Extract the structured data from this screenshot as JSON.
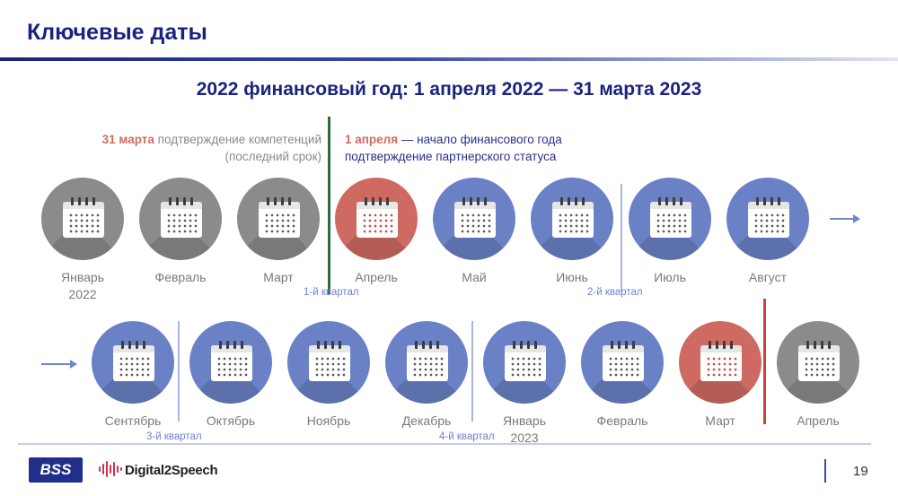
{
  "header": {
    "title": "Ключевые даты"
  },
  "subtitle": "2022 финансовый год: 1 апреля 2022 — 31 марта 2023",
  "notes": {
    "left_highlight": "31 марта",
    "left_text": " подтверждение компетенций",
    "left_line2": "(последний срок)",
    "right_highlight": "1 апреля",
    "right_text": " — начало финансового года",
    "right_line2": "подтверждение партнерского статуса"
  },
  "row1": {
    "months": [
      {
        "line1": "Январь",
        "line2": "2022",
        "color": "gray"
      },
      {
        "line1": "Февраль",
        "line2": "",
        "color": "gray"
      },
      {
        "line1": "Март",
        "line2": "",
        "color": "gray"
      },
      {
        "line1": "Апрель",
        "line2": "",
        "color": "red"
      },
      {
        "line1": "Май",
        "line2": "",
        "color": "blue"
      },
      {
        "line1": "Июнь",
        "line2": "",
        "color": "blue"
      },
      {
        "line1": "Июль",
        "line2": "",
        "color": "blue"
      },
      {
        "line1": "Август",
        "line2": "",
        "color": "blue"
      }
    ],
    "quarters": [
      "1-й квартал",
      "2-й квартал"
    ]
  },
  "row2": {
    "months": [
      {
        "line1": "Сентябрь",
        "line2": "",
        "color": "blue"
      },
      {
        "line1": "Октябрь",
        "line2": "",
        "color": "blue"
      },
      {
        "line1": "Ноябрь",
        "line2": "",
        "color": "blue"
      },
      {
        "line1": "Декабрь",
        "line2": "",
        "color": "blue"
      },
      {
        "line1": "Январь",
        "line2": "2023",
        "color": "blue"
      },
      {
        "line1": "Февраль",
        "line2": "",
        "color": "blue"
      },
      {
        "line1": "Март",
        "line2": "",
        "color": "red"
      },
      {
        "line1": "Апрель",
        "line2": "",
        "color": "gray"
      }
    ],
    "quarters": [
      "3-й квартал",
      "4-й квартал"
    ]
  },
  "footer": {
    "logo_text": "BSS",
    "brand": "Digital2Speech",
    "page_number": "19"
  },
  "colors": {
    "title": "#1a237e",
    "gray_circle": "#8b8b8b",
    "blue_circle": "#6a81c6",
    "red_circle": "#cf6a63",
    "fiscal_start_line": "#2e6b3e",
    "fiscal_end_line": "#c9433d"
  }
}
